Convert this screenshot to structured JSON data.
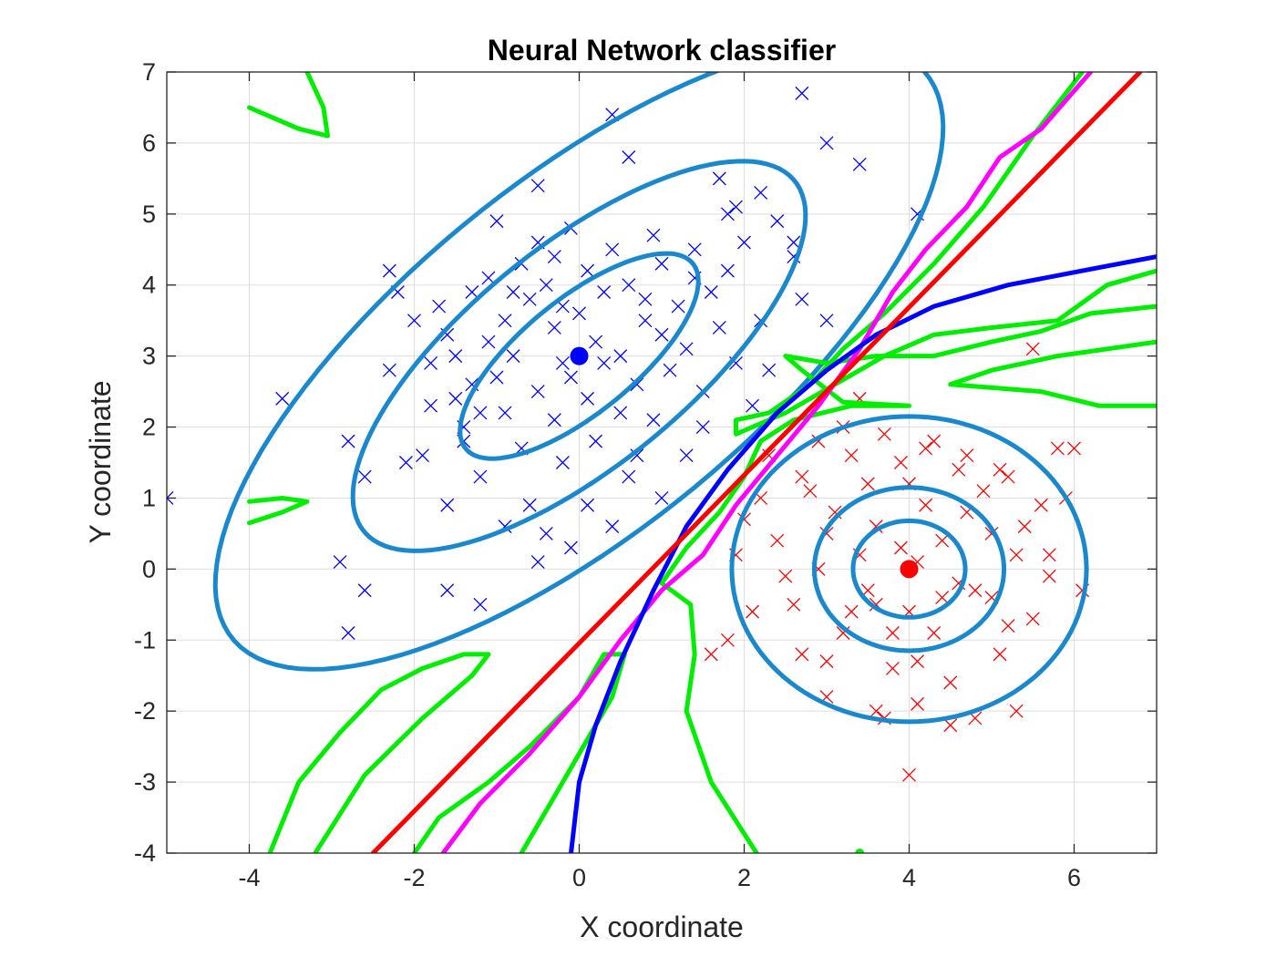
{
  "chart_data": {
    "type": "scatter",
    "title": "Neural Network classifier",
    "xlabel": "X coordinate",
    "ylabel": "Y coordinate",
    "xlim": [
      -5,
      7
    ],
    "ylim": [
      -4,
      7
    ],
    "xticks": [
      -4,
      -2,
      0,
      2,
      4,
      6
    ],
    "yticks": [
      -4,
      -3,
      -2,
      -1,
      0,
      1,
      2,
      3,
      4,
      5,
      6,
      7
    ],
    "grid": true,
    "colors": {
      "class1": "#0000ff",
      "class2": "#ff0000",
      "contour": "#1a88cc",
      "nn_boundary": "#00ee00",
      "magenta_boundary": "#ff00ff",
      "linear_boundary": "#ff0000",
      "quadratic_boundary": "#0000ff"
    },
    "means": [
      {
        "x": 0,
        "y": 3,
        "color": "#0000ff"
      },
      {
        "x": 4,
        "y": 0,
        "color": "#ff0000"
      }
    ],
    "class1_points": [
      [
        -3.6,
        2.4
      ],
      [
        -5,
        1
      ],
      [
        -2.9,
        0.1
      ],
      [
        -2.6,
        -0.3
      ],
      [
        -2.8,
        -0.9
      ],
      [
        -2.8,
        1.8
      ],
      [
        -2.6,
        1.3
      ],
      [
        -2.3,
        2.8
      ],
      [
        -2.3,
        4.2
      ],
      [
        -2.2,
        3.9
      ],
      [
        -2.0,
        3.5
      ],
      [
        -1.8,
        2.9
      ],
      [
        -1.8,
        2.3
      ],
      [
        -1.7,
        3.7
      ],
      [
        -1.6,
        3.3
      ],
      [
        -1.5,
        2.4
      ],
      [
        -1.4,
        2.0
      ],
      [
        -1.3,
        2.6
      ],
      [
        -1.2,
        1.3
      ],
      [
        -1.3,
        3.9
      ],
      [
        -1.1,
        3.2
      ],
      [
        -1.0,
        2.7
      ],
      [
        -0.9,
        3.5
      ],
      [
        -1.0,
        4.9
      ],
      [
        -0.7,
        4.3
      ],
      [
        -0.5,
        4.6
      ],
      [
        -0.4,
        4.0
      ],
      [
        -0.3,
        4.4
      ],
      [
        -0.2,
        3.7
      ],
      [
        -0.1,
        4.8
      ],
      [
        0.1,
        4.2
      ],
      [
        0.3,
        3.9
      ],
      [
        0.4,
        4.5
      ],
      [
        0.6,
        4.0
      ],
      [
        0.8,
        3.8
      ],
      [
        1.0,
        4.3
      ],
      [
        1.2,
        3.7
      ],
      [
        1.4,
        4.5
      ],
      [
        1.6,
        3.9
      ],
      [
        1.8,
        4.2
      ],
      [
        2.0,
        4.6
      ],
      [
        2.2,
        3.5
      ],
      [
        2.4,
        4.9
      ],
      [
        2.6,
        4.4
      ],
      [
        2.7,
        3.8
      ],
      [
        1.7,
        5.5
      ],
      [
        1.9,
        5.1
      ],
      [
        2.2,
        5.3
      ],
      [
        0.4,
        6.4
      ],
      [
        0.6,
        5.8
      ],
      [
        -0.5,
        5.4
      ],
      [
        -0.9,
        2.2
      ],
      [
        -0.7,
        1.7
      ],
      [
        -0.5,
        2.5
      ],
      [
        -0.3,
        2.1
      ],
      [
        -0.1,
        2.7
      ],
      [
        0.1,
        2.4
      ],
      [
        0.3,
        2.9
      ],
      [
        0.5,
        2.2
      ],
      [
        0.7,
        2.6
      ],
      [
        0.9,
        2.1
      ],
      [
        1.1,
        2.8
      ],
      [
        1.3,
        3.1
      ],
      [
        1.5,
        2.5
      ],
      [
        1.7,
        3.4
      ],
      [
        1.9,
        2.9
      ],
      [
        2.1,
        2.3
      ],
      [
        2.3,
        2.8
      ],
      [
        0.2,
        1.8
      ],
      [
        -0.2,
        1.5
      ],
      [
        -0.6,
        0.9
      ],
      [
        -0.9,
        0.6
      ],
      [
        -0.4,
        0.5
      ],
      [
        0.1,
        0.9
      ],
      [
        0.4,
        0.6
      ],
      [
        0.6,
        1.3
      ],
      [
        1.0,
        1.0
      ],
      [
        1.3,
        1.6
      ],
      [
        -1.4,
        1.8
      ],
      [
        -1.6,
        0.9
      ],
      [
        -1.2,
        -0.5
      ],
      [
        -1.6,
        -0.3
      ],
      [
        -0.5,
        0.1
      ],
      [
        -0.1,
        0.3
      ],
      [
        -1.9,
        1.6
      ],
      [
        -2.1,
        1.5
      ],
      [
        -1.2,
        2.2
      ],
      [
        -0.8,
        3.0
      ],
      [
        -0.3,
        3.4
      ],
      [
        0.0,
        3.6
      ],
      [
        0.2,
        3.2
      ],
      [
        0.5,
        3.0
      ],
      [
        0.8,
        3.5
      ],
      [
        1.0,
        3.3
      ],
      [
        -0.6,
        3.8
      ],
      [
        -1.1,
        4.1
      ],
      [
        -1.5,
        3.0
      ],
      [
        1.5,
        2.0
      ],
      [
        0.7,
        1.6
      ],
      [
        2.7,
        6.7
      ],
      [
        3.0,
        6.0
      ],
      [
        3.4,
        5.7
      ],
      [
        4.1,
        5.0
      ],
      [
        3.0,
        3.5
      ],
      [
        2.6,
        4.6
      ],
      [
        1.8,
        5.0
      ],
      [
        1.4,
        4.1
      ],
      [
        -0.8,
        3.9
      ],
      [
        0.9,
        4.7
      ],
      [
        -0.2,
        2.9
      ]
    ],
    "class2_points": [
      [
        1.6,
        -1.2
      ],
      [
        1.8,
        -1.0
      ],
      [
        1.9,
        0.2
      ],
      [
        2.0,
        0.7
      ],
      [
        2.2,
        1.0
      ],
      [
        2.4,
        0.4
      ],
      [
        2.6,
        -0.5
      ],
      [
        2.7,
        1.3
      ],
      [
        2.9,
        0.0
      ],
      [
        3.0,
        -1.8
      ],
      [
        3.1,
        0.8
      ],
      [
        3.2,
        -0.9
      ],
      [
        3.3,
        1.6
      ],
      [
        3.4,
        2.4
      ],
      [
        3.5,
        -0.3
      ],
      [
        3.6,
        0.6
      ],
      [
        3.7,
        -2.1
      ],
      [
        3.7,
        1.9
      ],
      [
        3.8,
        -1.4
      ],
      [
        3.9,
        0.3
      ],
      [
        4.0,
        1.2
      ],
      [
        4.0,
        -0.6
      ],
      [
        4.1,
        -1.9
      ],
      [
        4.2,
        0.9
      ],
      [
        4.2,
        1.7
      ],
      [
        4.3,
        -0.9
      ],
      [
        4.4,
        0.4
      ],
      [
        4.5,
        -1.6
      ],
      [
        4.6,
        1.4
      ],
      [
        4.6,
        -0.2
      ],
      [
        4.7,
        0.8
      ],
      [
        4.8,
        -2.1
      ],
      [
        4.9,
        1.1
      ],
      [
        5.0,
        -0.4
      ],
      [
        5.0,
        0.5
      ],
      [
        5.1,
        -1.2
      ],
      [
        5.2,
        1.3
      ],
      [
        5.3,
        -2.0
      ],
      [
        5.3,
        0.2
      ],
      [
        5.5,
        -0.7
      ],
      [
        5.6,
        0.9
      ],
      [
        5.7,
        -0.1
      ],
      [
        5.8,
        1.7
      ],
      [
        6.0,
        1.7
      ],
      [
        6.1,
        -0.3
      ],
      [
        5.5,
        3.1
      ],
      [
        4.0,
        -2.9
      ],
      [
        4.1,
        -1.3
      ],
      [
        3.6,
        -2.0
      ],
      [
        3.3,
        -0.6
      ],
      [
        3.0,
        0.5
      ],
      [
        2.8,
        1.1
      ],
      [
        2.5,
        -0.1
      ],
      [
        2.3,
        1.6
      ],
      [
        2.1,
        -0.6
      ],
      [
        3.9,
        1.5
      ],
      [
        4.3,
        1.8
      ],
      [
        4.7,
        1.6
      ],
      [
        5.1,
        1.4
      ],
      [
        5.4,
        0.6
      ],
      [
        5.7,
        0.2
      ],
      [
        5.9,
        1.0
      ],
      [
        3.5,
        1.2
      ],
      [
        3.2,
        2.0
      ],
      [
        2.9,
        1.8
      ],
      [
        4.5,
        -2.2
      ],
      [
        3.8,
        -0.9
      ],
      [
        4.4,
        -0.4
      ],
      [
        4.8,
        -0.3
      ],
      [
        5.2,
        -0.8
      ],
      [
        3.4,
        0.2
      ],
      [
        4.1,
        0.1
      ],
      [
        3.6,
        -0.5
      ],
      [
        2.7,
        -1.2
      ],
      [
        3.0,
        -1.3
      ]
    ],
    "contour_centers": [
      {
        "x": 0,
        "y": 3,
        "rx": 1.9,
        "ry": 0.75,
        "angle_deg": 45
      },
      {
        "x": 0,
        "y": 3,
        "rx": 3.6,
        "ry": 1.45,
        "angle_deg": 45
      },
      {
        "x": 0,
        "y": 3,
        "rx": 5.8,
        "ry": 2.3,
        "angle_deg": 45
      },
      {
        "x": 4,
        "y": 0,
        "rx": 0.68,
        "ry": 0.68,
        "angle_deg": 0
      },
      {
        "x": 4,
        "y": 0,
        "rx": 1.15,
        "ry": 1.15,
        "angle_deg": 0
      },
      {
        "x": 4,
        "y": 0,
        "rx": 2.15,
        "ry": 2.15,
        "angle_deg": 0
      }
    ],
    "linear_boundary": [
      [
        -2.5,
        -4
      ],
      [
        6.8,
        7
      ]
    ],
    "quadratic_boundary": [
      [
        -0.1,
        -4
      ],
      [
        0.0,
        -3.0
      ],
      [
        0.2,
        -2.2
      ],
      [
        0.5,
        -1.3
      ],
      [
        0.9,
        -0.3
      ],
      [
        1.3,
        0.6
      ],
      [
        1.8,
        1.4
      ],
      [
        2.4,
        2.2
      ],
      [
        3.0,
        2.8
      ],
      [
        3.6,
        3.3
      ],
      [
        4.3,
        3.7
      ],
      [
        5.2,
        4.0
      ],
      [
        6.1,
        4.2
      ],
      [
        7.0,
        4.4
      ]
    ],
    "magenta_boundary": [
      [
        -1.65,
        -4
      ],
      [
        -1.2,
        -3.3
      ],
      [
        -0.6,
        -2.6
      ],
      [
        0.0,
        -1.8
      ],
      [
        0.5,
        -1.0
      ],
      [
        1.0,
        -0.3
      ],
      [
        1.5,
        0.2
      ],
      [
        1.9,
        0.9
      ],
      [
        2.4,
        1.6
      ],
      [
        2.9,
        2.3
      ],
      [
        3.4,
        3.1
      ],
      [
        3.8,
        3.9
      ],
      [
        4.2,
        4.5
      ],
      [
        4.7,
        5.1
      ],
      [
        5.1,
        5.8
      ],
      [
        5.6,
        6.2
      ],
      [
        6.2,
        7
      ]
    ],
    "nn_boundary": [
      [
        [
          -0.7,
          -4
        ],
        [
          -0.3,
          -3.2
        ],
        [
          0.1,
          -2.4
        ],
        [
          0.4,
          -1.8
        ],
        [
          0.55,
          -1.2
        ],
        [
          0.3,
          -1.2
        ],
        [
          0.0,
          -1.8
        ],
        [
          -0.6,
          -2.5
        ],
        [
          -1.1,
          -3.0
        ],
        [
          -1.7,
          -3.5
        ],
        [
          -2.0,
          -4
        ]
      ],
      [
        [
          -3.75,
          -4
        ],
        [
          -3.4,
          -3.0
        ],
        [
          -2.9,
          -2.3
        ],
        [
          -2.4,
          -1.7
        ],
        [
          -1.9,
          -1.4
        ],
        [
          -1.4,
          -1.2
        ],
        [
          -1.1,
          -1.2
        ],
        [
          -1.3,
          -1.5
        ],
        [
          -1.9,
          -2.1
        ],
        [
          -2.6,
          -2.9
        ],
        [
          -3.2,
          -4
        ]
      ],
      [
        [
          2.15,
          -4
        ],
        [
          1.6,
          -3.0
        ],
        [
          1.3,
          -2.0
        ],
        [
          1.4,
          -1.2
        ],
        [
          1.35,
          -0.5
        ],
        [
          1.0,
          -0.2
        ],
        [
          1.3,
          0.3
        ],
        [
          1.7,
          0.8
        ],
        [
          2.0,
          1.3
        ],
        [
          2.2,
          1.8
        ],
        [
          2.6,
          2.1
        ],
        [
          3.3,
          2.3
        ],
        [
          4.0,
          2.3
        ],
        [
          3.2,
          2.35
        ],
        [
          2.7,
          2.8
        ],
        [
          2.5,
          3.0
        ],
        [
          3.0,
          2.9
        ],
        [
          3.6,
          3.0
        ],
        [
          4.3,
          3.0
        ],
        [
          5.0,
          3.2
        ],
        [
          5.6,
          3.35
        ],
        [
          6.2,
          3.6
        ],
        [
          7.0,
          3.7
        ]
      ],
      [
        [
          7.0,
          4.2
        ],
        [
          6.4,
          4.0
        ],
        [
          5.8,
          3.5
        ],
        [
          5.0,
          3.4
        ],
        [
          4.3,
          3.3
        ],
        [
          3.7,
          3.0
        ],
        [
          3.1,
          2.6
        ],
        [
          2.5,
          2.2
        ],
        [
          1.9,
          1.9
        ],
        [
          1.9,
          2.1
        ],
        [
          2.3,
          2.2
        ],
        [
          2.8,
          2.6
        ],
        [
          3.2,
          3.1
        ],
        [
          3.7,
          3.6
        ],
        [
          4.3,
          4.3
        ],
        [
          4.9,
          5.1
        ],
        [
          5.5,
          6.1
        ],
        [
          6.1,
          7
        ]
      ],
      [
        [
          7.0,
          2.3
        ],
        [
          6.3,
          2.3
        ],
        [
          5.6,
          2.5
        ],
        [
          4.5,
          2.6
        ],
        [
          5.0,
          2.8
        ],
        [
          5.8,
          3.0
        ],
        [
          7.0,
          3.2
        ]
      ],
      [
        [
          -4.0,
          0.65
        ],
        [
          -3.6,
          0.8
        ],
        [
          -3.3,
          0.95
        ],
        [
          -3.6,
          1.0
        ],
        [
          -4.0,
          0.95
        ]
      ],
      [
        [
          -4.0,
          6.5
        ],
        [
          -3.4,
          6.2
        ],
        [
          -3.05,
          6.1
        ],
        [
          -3.1,
          6.5
        ],
        [
          -3.3,
          7.0
        ]
      ]
    ],
    "nn_dot": {
      "x": 3.4,
      "y": -4
    }
  }
}
